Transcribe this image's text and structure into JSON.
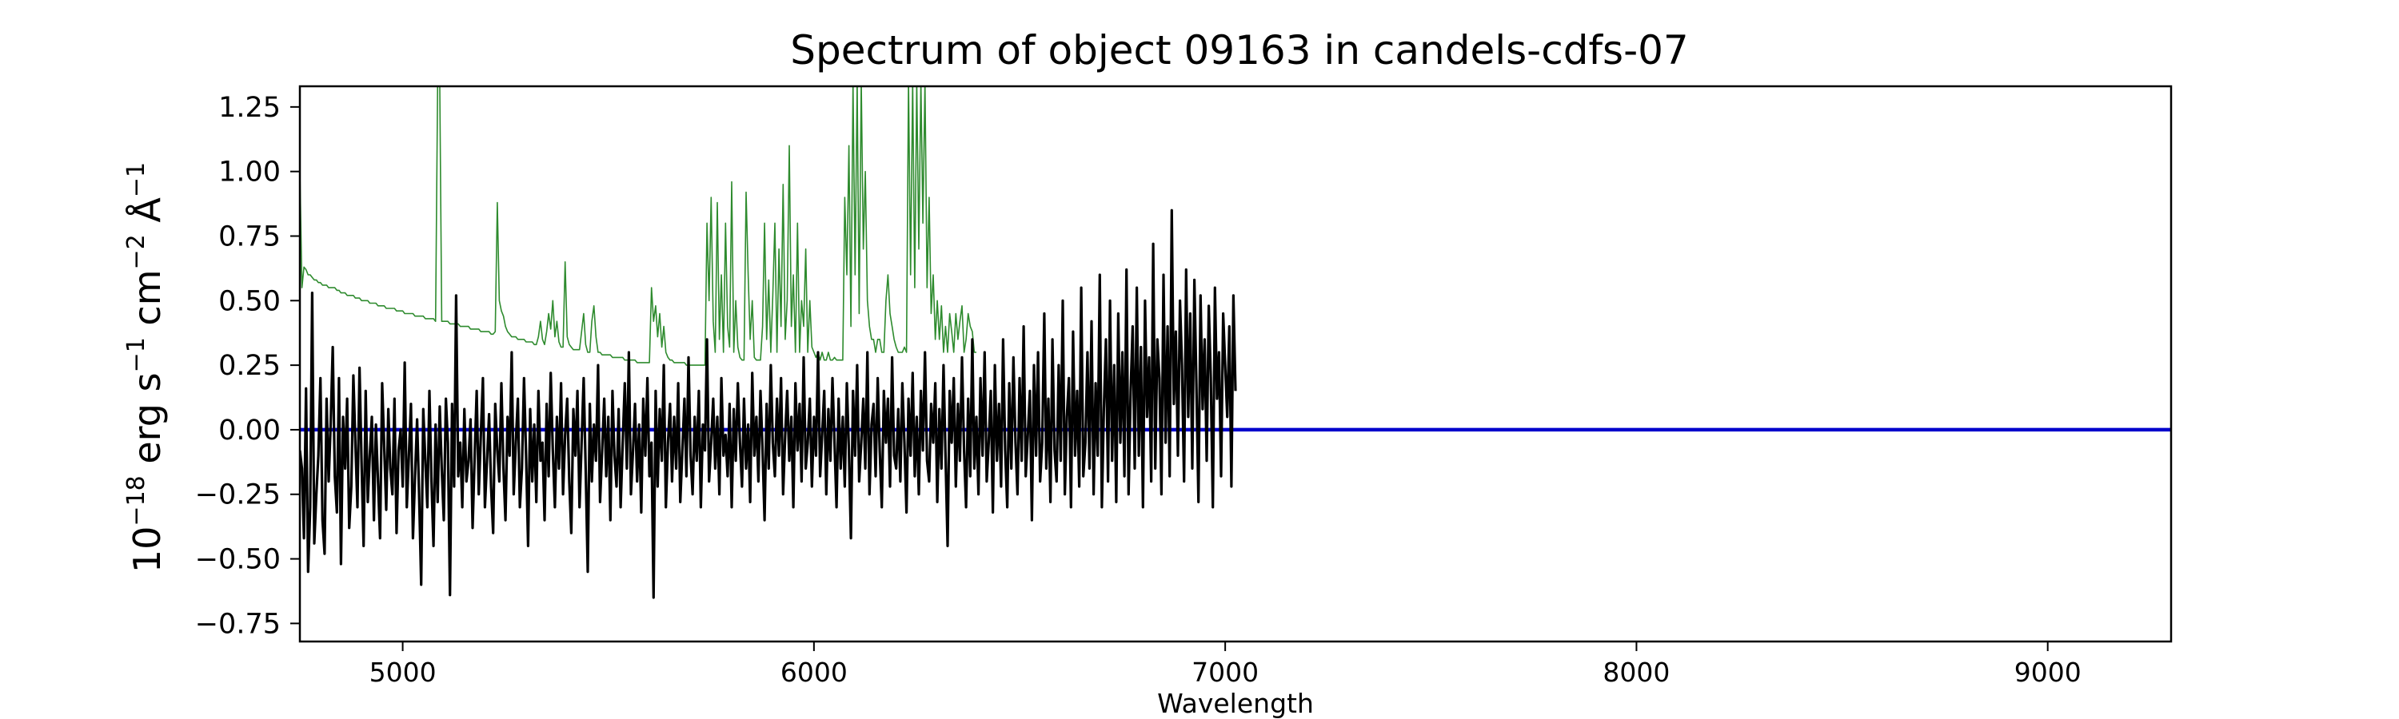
{
  "chart_data": {
    "type": "line",
    "title": "Spectrum of object 09163 in candels-cdfs-07",
    "xlabel": "Wavelength",
    "ylabel": {
      "base": "10",
      "exponent": "−18",
      "units": [
        {
          "text": " erg s",
          "sup": "−1"
        },
        {
          "text": " cm",
          "sup": "−2"
        },
        {
          "text": " Å",
          "sup": "−1"
        }
      ]
    },
    "xlim": [
      4750,
      9300
    ],
    "ylim": [
      -0.82,
      1.33
    ],
    "xticks": [
      5000,
      6000,
      7000,
      8000,
      9000
    ],
    "xtick_labels": [
      "5000",
      "6000",
      "7000",
      "8000",
      "9000"
    ],
    "yticks": [
      -0.75,
      -0.5,
      -0.25,
      0.0,
      0.25,
      0.5,
      0.75,
      1.0,
      1.25
    ],
    "ytick_labels": [
      "−0.75",
      "−0.50",
      "−0.25",
      "0.00",
      "0.25",
      "0.50",
      "0.75",
      "1.00",
      "1.25"
    ],
    "grid": false,
    "colors": {
      "flux": "#000000",
      "error": "#2e8b2e",
      "zero": "#0000cc"
    },
    "series": [
      {
        "role": "flux",
        "x_start": 4750,
        "x_step": 5,
        "y": [
          -0.08,
          -0.15,
          -0.42,
          0.16,
          -0.55,
          -0.3,
          0.53,
          -0.44,
          -0.25,
          -0.1,
          0.2,
          -0.35,
          -0.48,
          0.12,
          -0.2,
          0.03,
          0.32,
          -0.18,
          -0.32,
          0.2,
          -0.52,
          0.05,
          -0.15,
          0.12,
          -0.38,
          -0.22,
          0.21,
          -0.05,
          -0.3,
          0.24,
          -0.12,
          -0.45,
          0.15,
          -0.28,
          -0.1,
          0.05,
          -0.35,
          0.02,
          -0.2,
          -0.42,
          0.18,
          -0.06,
          -0.31,
          0.08,
          -0.15,
          -0.25,
          0.12,
          -0.4,
          -0.08,
          0.0,
          -0.22,
          0.26,
          -0.3,
          -0.1,
          0.1,
          -0.42,
          -0.18,
          0.04,
          -0.25,
          -0.6,
          0.08,
          -0.12,
          -0.3,
          0.15,
          -0.2,
          -0.45,
          0.02,
          -0.28,
          0.09,
          -0.15,
          -0.35,
          0.12,
          -0.05,
          -0.64,
          0.1,
          -0.22,
          0.52,
          -0.18,
          -0.05,
          -0.3,
          0.08,
          -0.2,
          -0.12,
          0.04,
          -0.38,
          -0.1,
          0.15,
          -0.25,
          -0.02,
          0.2,
          -0.3,
          -0.12,
          0.06,
          -0.22,
          -0.4,
          0.1,
          -0.08,
          -0.2,
          0.18,
          -0.15,
          -0.35,
          0.05,
          -0.1,
          0.3,
          -0.25,
          -0.05,
          0.12,
          -0.3,
          -0.15,
          0.2,
          -0.1,
          -0.45,
          0.08,
          -0.2,
          0.02,
          -0.28,
          0.15,
          -0.12,
          -0.05,
          -0.35,
          0.1,
          -0.18,
          0.22,
          -0.08,
          -0.3,
          0.05,
          -0.15,
          0.18,
          -0.25,
          -0.02,
          0.12,
          -0.2,
          -0.4,
          0.08,
          -0.1,
          0.15,
          -0.3,
          -0.05,
          0.2,
          -0.15,
          -0.55,
          0.1,
          -0.2,
          0.02,
          -0.12,
          0.25,
          -0.28,
          -0.08,
          0.12,
          -0.18,
          0.05,
          -0.35,
          0.15,
          -0.1,
          -0.22,
          0.08,
          -0.3,
          -0.05,
          0.18,
          -0.15,
          0.3,
          -0.25,
          -0.08,
          0.1,
          -0.2,
          0.02,
          -0.32,
          0.12,
          -0.1,
          0.2,
          -0.18,
          -0.05,
          -0.65,
          0.15,
          -0.22,
          0.08,
          -0.12,
          0.25,
          -0.3,
          -0.05,
          0.1,
          -0.2,
          0.05,
          -0.15,
          0.18,
          -0.28,
          -0.08,
          0.12,
          -0.18,
          0.28,
          -0.1,
          -0.25,
          0.05,
          -0.12,
          0.15,
          -0.3,
          0.02,
          -0.08,
          0.35,
          -0.2,
          -0.05,
          0.12,
          -0.15,
          0.05,
          -0.25,
          0.2,
          -0.1,
          -0.02,
          -0.18,
          0.1,
          -0.3,
          0.08,
          -0.12,
          0.18,
          -0.05,
          -0.22,
          0.12,
          -0.15,
          0.02,
          -0.28,
          0.22,
          -0.1,
          0.05,
          -0.2,
          0.15,
          -0.08,
          -0.35,
          0.1,
          -0.15,
          0.25,
          -0.05,
          -0.18,
          0.12,
          -0.1,
          0.2,
          -0.25,
          -0.02,
          0.15,
          -0.12,
          0.05,
          -0.3,
          0.18,
          -0.08,
          0.1,
          -0.2,
          0.28,
          -0.15,
          -0.05,
          0.12,
          -0.22,
          0.05,
          -0.1,
          0.3,
          -0.18,
          -0.02,
          0.15,
          -0.25,
          0.08,
          -0.12,
          0.2,
          -0.05,
          -0.3,
          0.12,
          -0.15,
          0.05,
          -0.22,
          0.18,
          -0.08,
          -0.42,
          0.15,
          -0.1,
          0.25,
          -0.2,
          -0.05,
          0.12,
          -0.15,
          0.3,
          -0.25,
          0.02,
          0.1,
          -0.18,
          0.2,
          -0.08,
          -0.3,
          0.15,
          -0.05,
          0.12,
          -0.22,
          0.28,
          -0.1,
          -0.15,
          0.08,
          -0.2,
          0.18,
          -0.05,
          -0.32,
          0.12,
          -0.1,
          0.22,
          -0.18,
          0.05,
          -0.25,
          0.15,
          -0.08,
          0.3,
          -0.12,
          -0.2,
          0.1,
          -0.05,
          0.18,
          -0.28,
          0.08,
          -0.15,
          0.25,
          -0.1,
          -0.45,
          0.15,
          -0.05,
          0.2,
          -0.22,
          0.1,
          -0.12,
          0.28,
          -0.08,
          -0.3,
          0.12,
          -0.18,
          0.35,
          -0.15,
          0.05,
          -0.25,
          0.2,
          -0.1,
          0.3,
          -0.2,
          -0.05,
          0.15,
          -0.32,
          0.25,
          -0.12,
          0.1,
          -0.22,
          0.35,
          -0.08,
          -0.3,
          0.18,
          -0.15,
          0.28,
          -0.05,
          -0.25,
          0.2,
          -0.12,
          0.4,
          -0.18,
          -0.02,
          0.15,
          -0.35,
          0.25,
          -0.1,
          0.3,
          -0.2,
          -0.05,
          0.45,
          -0.15,
          0.12,
          -0.28,
          0.35,
          -0.08,
          -0.2,
          0.25,
          -0.12,
          0.5,
          -0.25,
          0.05,
          0.2,
          -0.3,
          0.38,
          -0.1,
          0.15,
          -0.22,
          0.55,
          -0.18,
          -0.05,
          0.3,
          -0.15,
          0.42,
          -0.25,
          0.18,
          -0.1,
          0.6,
          -0.3,
          0.08,
          0.35,
          -0.2,
          0.5,
          -0.12,
          0.25,
          -0.28,
          0.45,
          -0.05,
          0.3,
          -0.18,
          0.62,
          -0.25,
          0.15,
          0.4,
          -0.15,
          0.55,
          -0.1,
          0.32,
          -0.3,
          0.5,
          0.05,
          0.28,
          -0.2,
          0.72,
          -0.15,
          0.35,
          0.2,
          -0.25,
          0.6,
          -0.05,
          0.4,
          -0.18,
          0.85,
          0.1,
          0.38,
          -0.1,
          0.5,
          0.25,
          -0.2,
          0.62,
          0.05,
          0.45,
          -0.15,
          0.58,
          0.18,
          -0.28,
          0.52,
          0.08,
          0.35,
          -0.12,
          0.48,
          0.2,
          -0.3,
          0.55,
          0.12,
          0.3,
          -0.18,
          0.45,
          0.25,
          0.05,
          0.4,
          -0.22,
          0.52,
          0.15
        ]
      },
      {
        "role": "error",
        "x_start": 4750,
        "x_step": 5,
        "y": [
          1.0,
          0.55,
          0.63,
          0.62,
          0.6,
          0.6,
          0.59,
          0.58,
          0.58,
          0.57,
          0.57,
          0.56,
          0.56,
          0.56,
          0.55,
          0.55,
          0.55,
          0.55,
          0.54,
          0.54,
          0.53,
          0.53,
          0.53,
          0.52,
          0.52,
          0.52,
          0.52,
          0.51,
          0.51,
          0.51,
          0.5,
          0.5,
          0.5,
          0.5,
          0.49,
          0.49,
          0.49,
          0.49,
          0.48,
          0.48,
          0.48,
          0.48,
          0.47,
          0.47,
          0.47,
          0.47,
          0.47,
          0.46,
          0.46,
          0.46,
          0.46,
          0.45,
          0.45,
          0.45,
          0.45,
          0.45,
          0.44,
          0.44,
          0.44,
          0.44,
          0.44,
          0.43,
          0.43,
          0.43,
          0.43,
          0.43,
          0.42,
          1.35,
          1.35,
          0.42,
          0.42,
          0.42,
          0.42,
          0.41,
          0.41,
          0.41,
          0.41,
          0.41,
          0.4,
          0.4,
          0.4,
          0.4,
          0.4,
          0.39,
          0.39,
          0.39,
          0.39,
          0.39,
          0.38,
          0.38,
          0.38,
          0.38,
          0.38,
          0.37,
          0.37,
          0.38,
          0.88,
          0.5,
          0.46,
          0.44,
          0.4,
          0.38,
          0.37,
          0.36,
          0.36,
          0.36,
          0.35,
          0.35,
          0.35,
          0.35,
          0.34,
          0.34,
          0.34,
          0.34,
          0.33,
          0.33,
          0.36,
          0.42,
          0.35,
          0.33,
          0.38,
          0.45,
          0.39,
          0.5,
          0.36,
          0.42,
          0.34,
          0.32,
          0.32,
          0.65,
          0.36,
          0.33,
          0.32,
          0.31,
          0.31,
          0.31,
          0.31,
          0.38,
          0.45,
          0.33,
          0.3,
          0.3,
          0.42,
          0.48,
          0.36,
          0.3,
          0.3,
          0.29,
          0.29,
          0.29,
          0.29,
          0.29,
          0.28,
          0.28,
          0.28,
          0.28,
          0.28,
          0.28,
          0.27,
          0.27,
          0.27,
          0.27,
          0.27,
          0.27,
          0.26,
          0.26,
          0.26,
          0.26,
          0.26,
          0.26,
          0.26,
          0.55,
          0.42,
          0.48,
          0.36,
          0.45,
          0.32,
          0.4,
          0.3,
          0.28,
          0.27,
          0.27,
          0.26,
          0.26,
          0.26,
          0.26,
          0.26,
          0.26,
          0.25,
          0.25,
          0.25,
          0.25,
          0.25,
          0.25,
          0.25,
          0.25,
          0.25,
          0.25,
          0.8,
          0.5,
          0.9,
          0.42,
          0.3,
          0.88,
          0.35,
          0.6,
          0.3,
          0.8,
          0.4,
          0.32,
          0.96,
          0.3,
          0.5,
          0.32,
          0.28,
          0.27,
          0.27,
          0.92,
          0.6,
          0.35,
          0.5,
          0.28,
          0.27,
          0.27,
          0.27,
          0.4,
          0.8,
          0.35,
          0.58,
          0.3,
          0.52,
          0.8,
          0.3,
          0.7,
          0.4,
          0.95,
          0.35,
          0.5,
          1.1,
          0.4,
          0.6,
          0.3,
          0.8,
          0.3,
          0.5,
          0.4,
          0.7,
          0.3,
          0.5,
          0.32,
          0.3,
          0.28,
          0.3,
          0.27,
          0.3,
          0.27,
          0.27,
          0.3,
          0.27,
          0.27,
          0.28,
          0.27,
          0.27,
          0.27,
          0.27,
          0.9,
          0.6,
          1.1,
          0.4,
          1.35,
          0.6,
          1.35,
          0.45,
          1.35,
          0.7,
          1.0,
          0.5,
          0.4,
          0.35,
          0.35,
          0.3,
          0.35,
          0.35,
          0.3,
          0.3,
          0.5,
          0.6,
          0.45,
          0.4,
          0.35,
          0.32,
          0.3,
          0.3,
          0.3,
          0.32,
          0.3,
          1.35,
          0.6,
          1.35,
          0.55,
          1.35,
          0.7,
          1.35,
          0.8,
          1.35,
          0.55,
          0.9,
          0.45,
          0.6,
          0.35,
          0.5,
          0.35,
          0.48,
          0.3,
          0.4,
          0.3,
          0.45,
          0.38,
          0.3,
          0.45,
          0.35,
          0.42,
          0.48,
          0.3,
          0.35,
          0.45,
          0.4,
          0.38,
          0.3,
          0.3
        ]
      }
    ],
    "zero_line": 0.0
  }
}
